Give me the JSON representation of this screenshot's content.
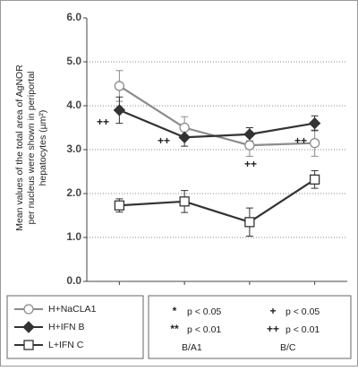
{
  "chart_data": {
    "type": "line",
    "ylabel": "Mean values of the total area of AgNOR per nucleus were shown in periportal hepatocytes (µm²)",
    "categories": [
      null,
      null,
      null,
      null
    ],
    "ylim": [
      0,
      6
    ],
    "yticks": [
      {
        "value": 0,
        "label": "0.0"
      },
      {
        "value": 1,
        "label": "1.0"
      },
      {
        "value": 2,
        "label": "2.0"
      },
      {
        "value": 3,
        "label": "3.0"
      },
      {
        "value": 4,
        "label": "4.0"
      },
      {
        "value": 5,
        "label": "5.0"
      },
      {
        "value": 6,
        "label": "6.0"
      }
    ],
    "grid": true,
    "series": [
      {
        "name": "H+NaCLA1",
        "color": "#8c8c8c",
        "marker": "circle",
        "values": [
          4.45,
          3.5,
          3.1,
          3.15
        ],
        "errors": [
          0.35,
          0.25,
          0.25,
          0.3
        ]
      },
      {
        "name": "H+IFN B",
        "color": "#333333",
        "marker": "diamond",
        "values": [
          3.9,
          3.28,
          3.35,
          3.6
        ],
        "errors": [
          0.3,
          0.2,
          0.15,
          0.17
        ]
      },
      {
        "name": "L+IFN C",
        "color": "#333333",
        "marker": "square",
        "values": [
          1.73,
          1.82,
          1.35,
          2.32
        ],
        "errors": [
          0.15,
          0.25,
          0.32,
          0.2
        ]
      }
    ],
    "annotations": [
      "++",
      "++",
      "++",
      "++"
    ],
    "significance": [
      {
        "entries": [
          {
            "symbol": "*",
            "text": "p < 0.05"
          },
          {
            "symbol": "**",
            "text": "p < 0.01"
          }
        ],
        "caption": "B/A1"
      },
      {
        "entries": [
          {
            "symbol": "+",
            "text": "p < 0.05"
          },
          {
            "symbol": "++",
            "text": "p < 0.01"
          }
        ],
        "caption": "B/C"
      }
    ]
  }
}
